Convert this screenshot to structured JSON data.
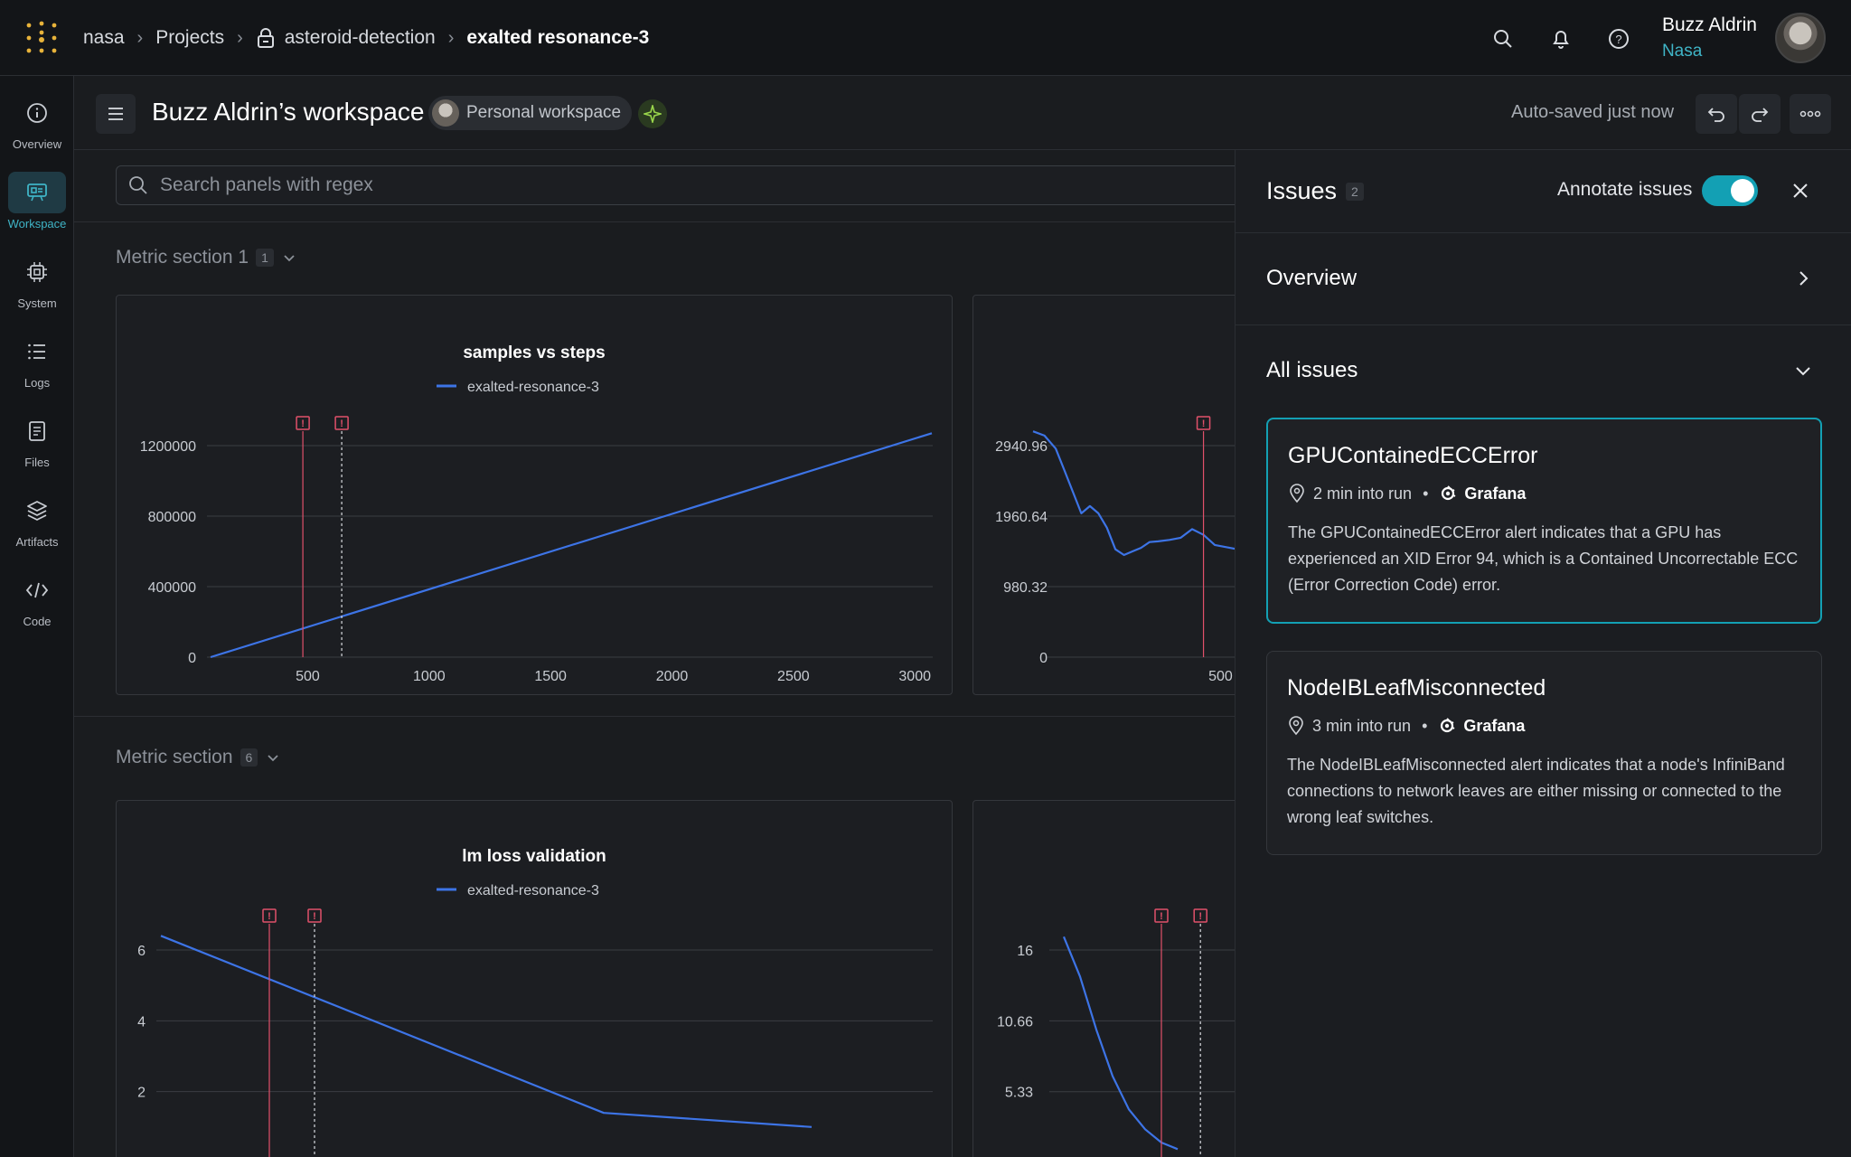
{
  "breadcrumb": {
    "org": "nasa",
    "projects": "Projects",
    "project": "asteroid-detection",
    "run": "exalted resonance-3"
  },
  "user": {
    "name": "Buzz Aldrin",
    "org": "Nasa"
  },
  "sidebar": {
    "items": [
      {
        "label": "Overview",
        "icon": "info-icon"
      },
      {
        "label": "Workspace",
        "icon": "workspace-icon",
        "active": true
      },
      {
        "label": "System",
        "icon": "chip-icon"
      },
      {
        "label": "Logs",
        "icon": "list-icon"
      },
      {
        "label": "Files",
        "icon": "file-icon"
      },
      {
        "label": "Artifacts",
        "icon": "layers-icon"
      },
      {
        "label": "Code",
        "icon": "code-icon"
      }
    ]
  },
  "workspace": {
    "title": "Buzz Aldrin’s workspace",
    "badge": "Personal workspace",
    "autosave": "Auto-saved just now"
  },
  "search": {
    "placeholder": "Search panels with regex"
  },
  "sections": [
    {
      "title": "Metric section 1",
      "count": "1"
    },
    {
      "title": "Metric section",
      "count": "6"
    }
  ],
  "chart_data": [
    {
      "type": "line",
      "title": "samples vs steps",
      "legend": [
        "exalted-resonance-3"
      ],
      "x_ticks": [
        "500",
        "1000",
        "1500",
        "2000",
        "2500",
        "3000"
      ],
      "y_ticks": [
        "0",
        "400000",
        "800000",
        "1200000"
      ],
      "xlim": [
        100,
        3070
      ],
      "ylim": [
        0,
        1200000
      ],
      "series": [
        {
          "name": "exalted-resonance-3",
          "color": "#3d74e6",
          "x": [
            100,
            3070
          ],
          "y": [
            0,
            1270000
          ]
        }
      ],
      "markers": [
        {
          "x": 480,
          "style": "solid"
        },
        {
          "x": 640,
          "style": "dashed"
        }
      ]
    },
    {
      "type": "line",
      "title": "",
      "x_ticks": [
        "500"
      ],
      "y_ticks": [
        "0",
        "980.32",
        "1960.64",
        "2940.96"
      ],
      "xlim": [
        100,
        800
      ],
      "ylim": [
        0,
        2940.96
      ],
      "series": [
        {
          "color": "#3d74e6",
          "x": [
            170,
            190,
            210,
            225,
            240,
            255,
            270,
            285,
            300,
            315,
            330,
            345,
            360,
            375,
            390,
            410,
            430,
            450,
            470,
            490,
            510,
            530,
            550,
            570,
            590,
            610,
            630,
            660,
            690,
            720,
            750,
            775
          ],
          "y": [
            3140,
            3080,
            2900,
            2600,
            2300,
            2000,
            2100,
            2000,
            1800,
            1500,
            1420,
            1470,
            1520,
            1600,
            1610,
            1630,
            1660,
            1780,
            1700,
            1560,
            1530,
            1500,
            1520,
            1560,
            1560,
            1580,
            1650,
            1590,
            1520,
            1460,
            1400,
            1350
          ]
        }
      ],
      "markers": [
        {
          "x": 470,
          "style": "solid"
        },
        {
          "x": 550,
          "style": "dashed"
        }
      ]
    },
    {
      "type": "line",
      "title": "lm loss validation",
      "legend": [
        "exalted-resonance-3"
      ],
      "y_ticks": [
        "2",
        "4",
        "6"
      ],
      "ylim": [
        0,
        6
      ],
      "series": [
        {
          "name": "exalted-resonance-3",
          "color": "#3d74e6",
          "x": [
            0,
            0.49,
            0.72
          ],
          "y": [
            6.4,
            1.4,
            1.0
          ]
        }
      ],
      "markers": [
        {
          "x": 0.12,
          "style": "solid"
        },
        {
          "x": 0.17,
          "style": "dashed"
        }
      ]
    },
    {
      "type": "line",
      "title": "",
      "y_ticks": [
        "5.33",
        "10.66",
        "16"
      ],
      "ylim": [
        0,
        16
      ],
      "series": [
        {
          "color": "#3d74e6",
          "x": [
            0,
            0.05,
            0.1,
            0.15,
            0.2,
            0.25,
            0.3,
            0.35
          ],
          "y": [
            17,
            14,
            10,
            6.5,
            4.0,
            2.5,
            1.5,
            1.0
          ]
        }
      ],
      "markers": [
        {
          "x": 0.3,
          "style": "solid"
        },
        {
          "x": 0.42,
          "style": "dashed"
        }
      ]
    }
  ],
  "issues": {
    "title": "Issues",
    "count": "2",
    "annotate_label": "Annotate issues",
    "annotate_on": true,
    "overview_label": "Overview",
    "all_label": "All issues",
    "items": [
      {
        "title": "GPUContainedECCError",
        "time": "2 min into run",
        "source": "Grafana",
        "body": "The GPUContainedECCError alert indicates that a GPU has experienced an XID Error 94, which is a Contained Uncorrectable ECC (Error Correction Code) error."
      },
      {
        "title": "NodeIBLeafMisconnected",
        "time": "3 min into run",
        "source": "Grafana",
        "body": "The NodeIBLeafMisconnected alert indicates that a node's InfiniBand connections to network leaves are either missing or connected to the wrong leaf switches."
      }
    ]
  },
  "colors": {
    "accent": "#13a0b4",
    "series": "#3d74e6",
    "marker": "#e0506a"
  }
}
